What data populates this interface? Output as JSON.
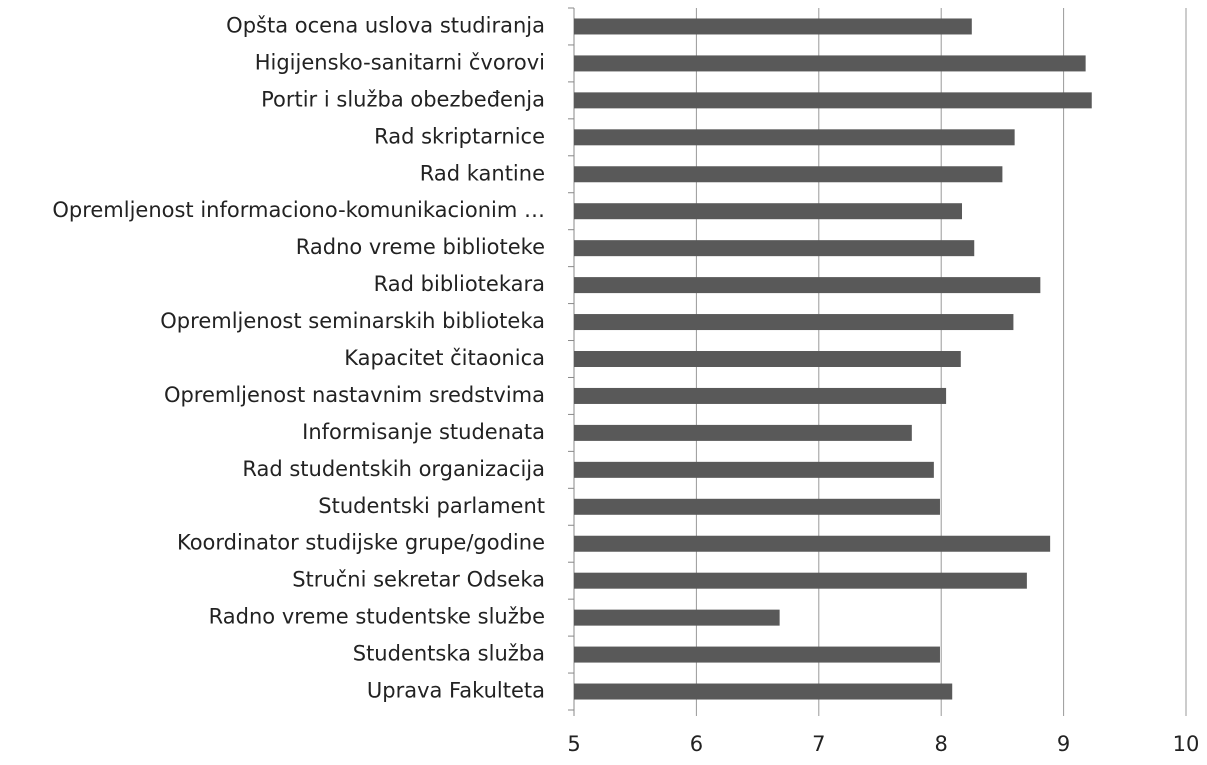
{
  "chart_data": {
    "type": "barh",
    "categories": [
      "Opšta ocena uslova studiranja",
      "Higijensko-sanitarni čvorovi",
      "Portir i služba obezbeđenja",
      "Rad skriptarnice",
      "Rad kantine",
      "Opremljenost informaciono-komunikacionim …",
      "Radno vreme biblioteke",
      "Rad bibliotekara",
      "Opremljenost seminarskih biblioteka",
      "Kapacitet čitaonica",
      "Opremljenost nastavnim sredstvima",
      "Informisanje studenata",
      "Rad studentskih organizacija",
      "Studentski parlament",
      "Koordinator studijske grupe/godine",
      "Stručni sekretar Odseka",
      "Radno vreme studentske službe",
      "Studentska služba",
      "Uprava Fakulteta"
    ],
    "values": [
      8.25,
      9.18,
      9.23,
      8.6,
      8.5,
      8.17,
      8.27,
      8.81,
      8.59,
      8.16,
      8.04,
      7.76,
      7.94,
      7.99,
      8.89,
      8.7,
      6.68,
      7.99,
      8.09
    ],
    "color": "#595959",
    "xlim": [
      5,
      10
    ],
    "xticks": [
      5,
      6,
      7,
      8,
      9,
      10
    ],
    "grid": true
  }
}
